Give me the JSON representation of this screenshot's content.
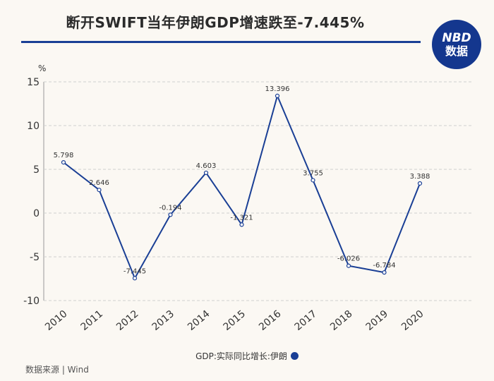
{
  "header": {
    "title": "断开SWIFT当年伊朗GDP增速跌至-7.445%",
    "logo_line1": "NBD",
    "logo_line2": "数据"
  },
  "footer": {
    "source": "数据来源 | Wind"
  },
  "colors": {
    "accent": "#1a3f95",
    "logo": "#14378e",
    "grid": "#cfcfcf",
    "background": "#fbf8f3"
  },
  "chart_data": {
    "type": "line",
    "unit_label": "%",
    "ylim": [
      -10,
      15
    ],
    "yticks": [
      15,
      10,
      5,
      0,
      -5,
      -10
    ],
    "grid": true,
    "legend_position": "bottom",
    "categories": [
      "2010",
      "2011",
      "2012",
      "2013",
      "2014",
      "2015",
      "2016",
      "2017",
      "2018",
      "2019",
      "2020"
    ],
    "series": [
      {
        "name": "GDP:实际同比增长:伊朗",
        "values": [
          5.798,
          2.646,
          -7.445,
          -0.194,
          4.603,
          -1.321,
          13.396,
          3.755,
          -6.026,
          -6.784,
          3.388
        ],
        "labels": [
          "5.798",
          "2.646",
          "-7.445",
          "-0.194",
          "4.603",
          "-1.321",
          "13.396",
          "3.755",
          "-6.026",
          "-6.784",
          "3.388"
        ]
      }
    ]
  }
}
